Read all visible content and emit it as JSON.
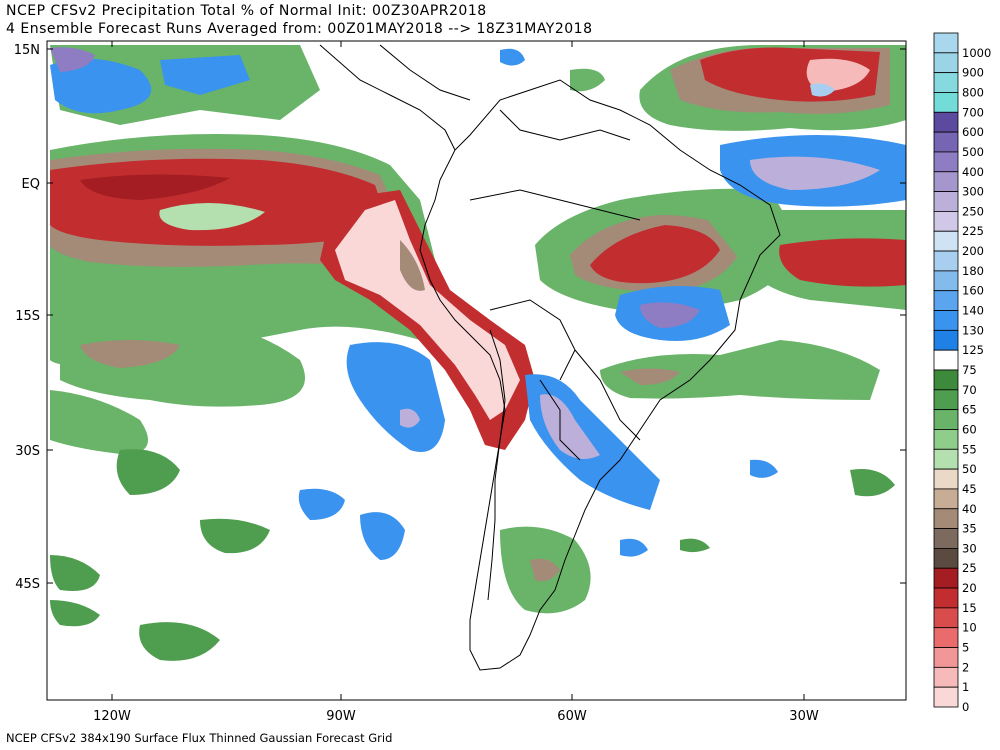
{
  "header": {
    "line1": "NCEP CFSv2 Precipitation Total % of Normal Init: 00Z30APR2018",
    "line2": "4 Ensemble Forecast Runs Averaged from: 00Z01MAY2018 --> 18Z31MAY2018"
  },
  "footer": {
    "text": "NCEP CFSv2 384x190 Surface Flux Thinned Gaussian Forecast Grid"
  },
  "axes": {
    "lat_labels": [
      "15N",
      "EQ",
      "15S",
      "30S",
      "45S"
    ],
    "lon_labels": [
      "120W",
      "90W",
      "60W",
      "30W"
    ]
  },
  "colorbar": {
    "levels": [
      {
        "label": "1000",
        "color": "#a9d8ee"
      },
      {
        "label": "900",
        "color": "#9bd4e6"
      },
      {
        "label": "800",
        "color": "#86d9de"
      },
      {
        "label": "700",
        "color": "#74dcd8"
      },
      {
        "label": "600",
        "color": "#5b4a9e"
      },
      {
        "label": "500",
        "color": "#7565b2"
      },
      {
        "label": "400",
        "color": "#8e7dc2"
      },
      {
        "label": "300",
        "color": "#a596cd"
      },
      {
        "label": "250",
        "color": "#bcb0da"
      },
      {
        "label": "225",
        "color": "#d0c8e6"
      },
      {
        "label": "200",
        "color": "#cfe3f5"
      },
      {
        "label": "180",
        "color": "#a9cff0"
      },
      {
        "label": "160",
        "color": "#84bbed"
      },
      {
        "label": "140",
        "color": "#5aa5ee"
      },
      {
        "label": "130",
        "color": "#3a93ee"
      },
      {
        "label": "125",
        "color": "#1f80e6"
      },
      {
        "label": "75",
        "color": "#ffffff"
      },
      {
        "label": "70",
        "color": "#3d8a3d"
      },
      {
        "label": "65",
        "color": "#4f9e4f"
      },
      {
        "label": "60",
        "color": "#69b469"
      },
      {
        "label": "55",
        "color": "#8fcd8a"
      },
      {
        "label": "50",
        "color": "#b4dfae"
      },
      {
        "label": "45",
        "color": "#ead9c6"
      },
      {
        "label": "40",
        "color": "#c8ad96"
      },
      {
        "label": "35",
        "color": "#a48b78"
      },
      {
        "label": "30",
        "color": "#7b6a5d"
      },
      {
        "label": "25",
        "color": "#5b4a40"
      },
      {
        "label": "20",
        "color": "#a31d22"
      },
      {
        "label": "15",
        "color": "#c22d30"
      },
      {
        "label": "10",
        "color": "#d94c4c"
      },
      {
        "label": "5",
        "color": "#e96b6b"
      },
      {
        "label": "2",
        "color": "#f29797"
      },
      {
        "label": "1",
        "color": "#f7baba"
      },
      {
        "label": "0",
        "color": "#fbd8d8"
      }
    ]
  }
}
